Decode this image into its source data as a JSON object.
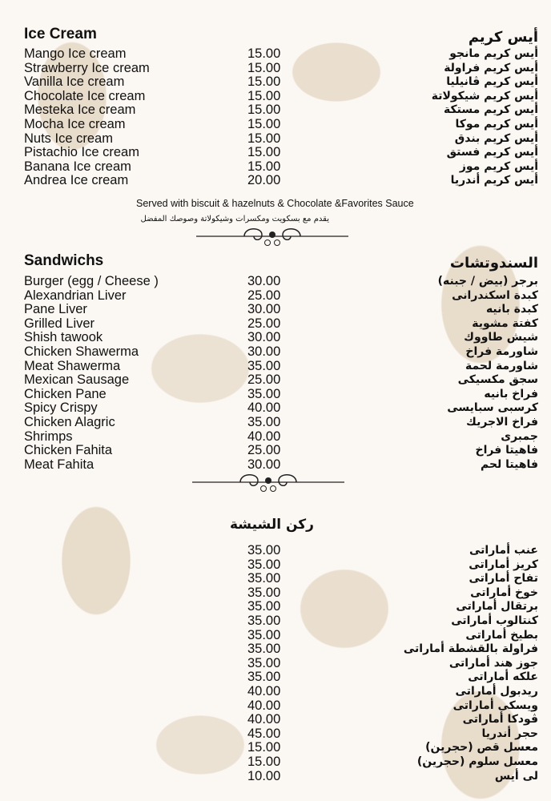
{
  "ice_cream": {
    "title_en": "Ice Cream",
    "title_ar": "أيس كريم",
    "items": [
      {
        "en": "Mango Ice cream",
        "price": "15.00",
        "ar": "أيس كريم مانجو"
      },
      {
        "en": "Strawberry Ice cream",
        "price": "15.00",
        "ar": "أيس كريم فراولة"
      },
      {
        "en": "Vanilla Ice cream",
        "price": "15.00",
        "ar": "أيس كريم ڤانيليا"
      },
      {
        "en": "Chocolate Ice cream",
        "price": "15.00",
        "ar": "أيس كريم شيكولاتة"
      },
      {
        "en": "Mesteka Ice cream",
        "price": "15.00",
        "ar": "أيس كريم مستكة"
      },
      {
        "en": "Mocha Ice cream",
        "price": "15.00",
        "ar": "أيس كريم موكا"
      },
      {
        "en": "Nuts Ice cream",
        "price": "15.00",
        "ar": "أيس كريم بندق"
      },
      {
        "en": "Pistachio Ice cream",
        "price": "15.00",
        "ar": "أيس كريم فستق"
      },
      {
        "en": "Banana Ice cream",
        "price": "15.00",
        "ar": "أيس كريم موز"
      },
      {
        "en": "Andrea Ice cream",
        "price": "20.00",
        "ar": "أيس كريم أندريا"
      }
    ],
    "note_en": "Served with biscuit & hazelnuts & Chocolate &Favorites Sauce",
    "note_ar": "يقدم مع بسكويت ومكسرات وشيكولاتة وصوصك المفضل"
  },
  "sandwiches": {
    "title_en": "Sandwichs",
    "title_ar": "السندوتشات",
    "items": [
      {
        "en": "Burger (egg / Cheese )",
        "price": "30.00",
        "ar": "برجر (بيض / جبنه)"
      },
      {
        "en": "Alexandrian Liver",
        "price": "25.00",
        "ar": "كبدة اسكندرانى"
      },
      {
        "en": "Pane Liver",
        "price": "30.00",
        "ar": "كبدة بانيه"
      },
      {
        "en": "Grilled Liver",
        "price": "25.00",
        "ar": "كفتة مشوية"
      },
      {
        "en": "Shish tawook",
        "price": "30.00",
        "ar": "شيش طاووك"
      },
      {
        "en": "Chicken Shawerma",
        "price": "30.00",
        "ar": "شاورمة فراخ"
      },
      {
        "en": "Meat Shawerma",
        "price": "35.00",
        "ar": "شاورمة لحمة"
      },
      {
        "en": "Mexican Sausage",
        "price": "25.00",
        "ar": "سجق مكسيكى"
      },
      {
        "en": "Chicken Pane",
        "price": "35.00",
        "ar": "فراخ بانيه"
      },
      {
        "en": "Spicy Crispy",
        "price": "40.00",
        "ar": "كرسبى سبايسى"
      },
      {
        "en": "Chicken Alagric",
        "price": "35.00",
        "ar": "فراخ الاجريك"
      },
      {
        "en": "Shrimps",
        "price": "40.00",
        "ar": "جمبرى"
      },
      {
        "en": "Chicken Fahita",
        "price": "25.00",
        "ar": "فاهيتا فراخ"
      },
      {
        "en": "Meat Fahita",
        "price": "30.00",
        "ar": "فاهيتا لحم"
      }
    ]
  },
  "shisha": {
    "title_ar": "ركن الشيشة",
    "items": [
      {
        "price": "35.00",
        "ar": "عنب أماراتى"
      },
      {
        "price": "35.00",
        "ar": "كريز أماراتى"
      },
      {
        "price": "35.00",
        "ar": "تفاح أماراتى"
      },
      {
        "price": "35.00",
        "ar": "خوخ أماراتى"
      },
      {
        "price": "35.00",
        "ar": "برتقال أماراتى"
      },
      {
        "price": "35.00",
        "ar": "كنتالوب أماراتى"
      },
      {
        "price": "35.00",
        "ar": "بطيخ أماراتى"
      },
      {
        "price": "35.00",
        "ar": "فراولة بالقشطة أماراتى"
      },
      {
        "price": "35.00",
        "ar": "جوز هند أماراتى"
      },
      {
        "price": "35.00",
        "ar": "علكه أماراتى"
      },
      {
        "price": "40.00",
        "ar": "ريدبول أماراتى"
      },
      {
        "price": "40.00",
        "ar": "ويسكى أماراتى"
      },
      {
        "price": "40.00",
        "ar": "ڤودكا أماراتى"
      },
      {
        "price": "45.00",
        "ar": "حجر أندريا"
      },
      {
        "price": "15.00",
        "ar": "معسل قص (حجرين)"
      },
      {
        "price": "15.00",
        "ar": "معسل سلوم (حجرين)"
      },
      {
        "price": "10.00",
        "ar": "لى أيس"
      }
    ]
  },
  "colors": {
    "background": "#fbf8f3",
    "pattern": "#e8dccb",
    "text": "#111111"
  }
}
